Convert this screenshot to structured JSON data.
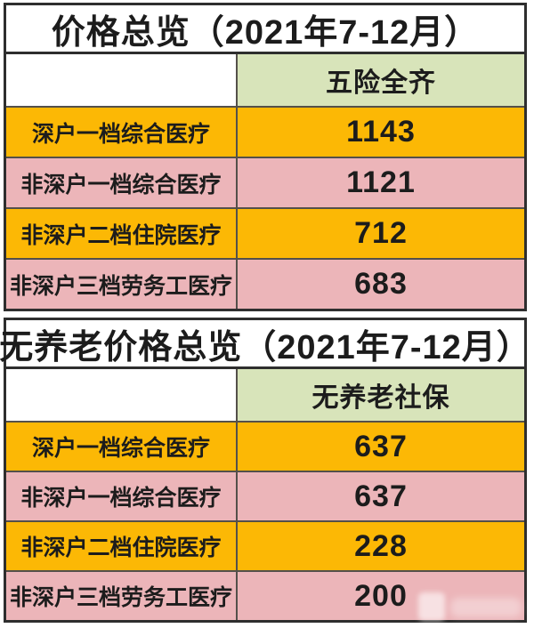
{
  "colors": {
    "row_orange": "#FCB805",
    "row_pink": "#ECB5B9",
    "column_header_green": "#D8E4BA",
    "outer_border": "#2E2E2E",
    "inner_border": "#54504A",
    "text": "#1C1C1C",
    "background": "#FFFFFF"
  },
  "chart_data": [
    {
      "type": "table",
      "title": "价格总览（2021年7-12月）",
      "column_header": "五险全齐",
      "row_labels": [
        "深户一档综合医疗",
        "非深户一档综合医疗",
        "非深户二档住院医疗",
        "非深户三档劳务工医疗"
      ],
      "values": [
        1143,
        1121,
        712,
        683
      ],
      "layout": "two-column table, alternating orange/pink rows, green column header"
    },
    {
      "type": "table",
      "title": "无养老价格总览（2021年7-12月）",
      "column_header": "无养老社保",
      "row_labels": [
        "深户一档综合医疗",
        "非深户一档综合医疗",
        "非深户二档住院医疗",
        "非深户三档劳务工医疗"
      ],
      "values": [
        637,
        637,
        228,
        200
      ],
      "layout": "two-column table, alternating orange/pink rows, green column header"
    }
  ]
}
